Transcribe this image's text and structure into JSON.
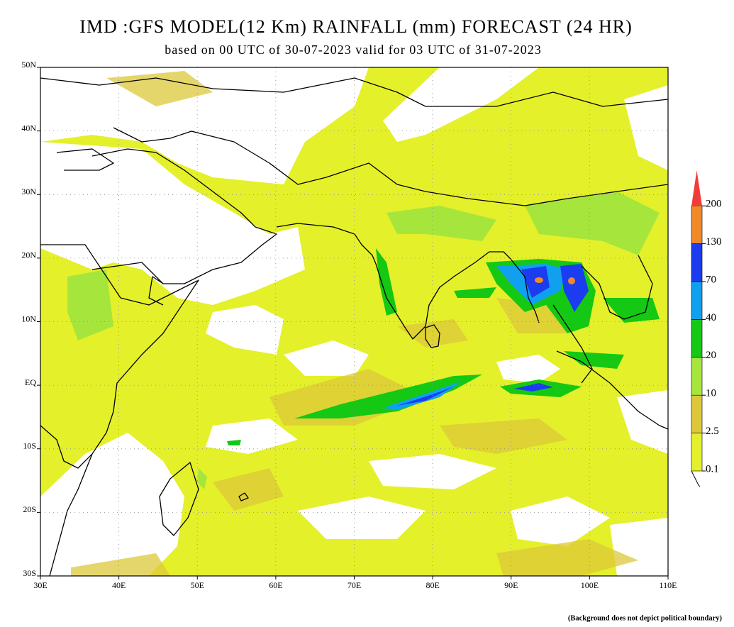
{
  "title": "IMD :GFS MODEL(12 Km) RAINFALL (mm) FORECAST (24 HR)",
  "subtitle": "based on 00 UTC of 30-07-2023 valid for 03 UTC of 31-07-2023",
  "map": {
    "lon_labels": [
      "30E",
      "40E",
      "50E",
      "60E",
      "70E",
      "80E",
      "90E",
      "100E",
      "110E"
    ],
    "lat_labels": [
      "50N",
      "40N",
      "30N",
      "20N",
      "10N",
      "EQ",
      "10S",
      "20S",
      "30S"
    ]
  },
  "legend": {
    "levels": [
      0.1,
      2.5,
      10,
      20,
      40,
      70,
      130,
      200
    ],
    "colors": [
      "#e4f02a",
      "#dcc83a",
      "#a6e63c",
      "#14c814",
      "#10a0f0",
      "#1c3cf0",
      "#f08a28",
      "#f23c3c"
    ]
  },
  "note": "(Background does not depict political boundary)"
}
